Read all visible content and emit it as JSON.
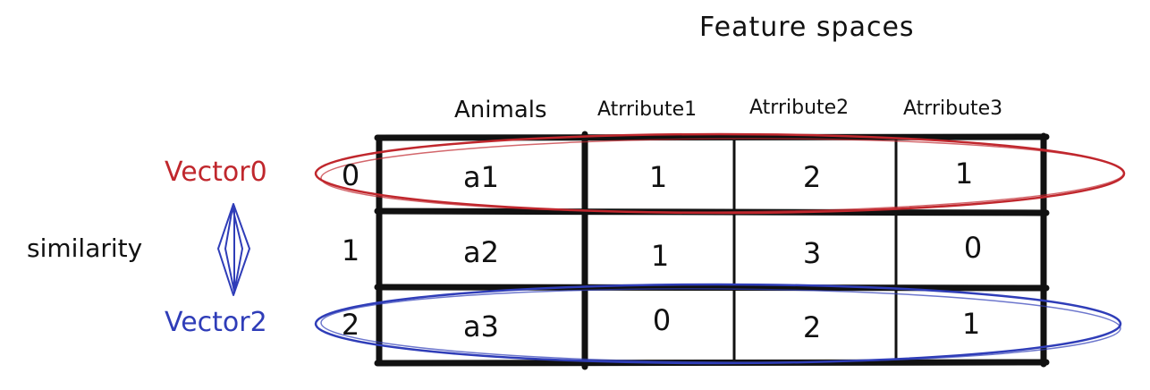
{
  "title": "Feature spaces",
  "columns": [
    "Animals",
    "Atrribute1",
    "Atrribute2",
    "Atrribute3"
  ],
  "rows": [
    {
      "index": "0",
      "cells": [
        "a1",
        "1",
        "2",
        "1"
      ]
    },
    {
      "index": "1",
      "cells": [
        "a2",
        "1",
        "3",
        "0"
      ]
    },
    {
      "index": "2",
      "cells": [
        "a3",
        "0",
        "2",
        "1"
      ]
    }
  ],
  "vectors": {
    "top": {
      "label": "Vector0",
      "color": "#c0272d"
    },
    "bottom": {
      "label": "Vector2",
      "color": "#2f3db8"
    }
  },
  "similarity": {
    "label": "similarity",
    "color": "#2f3db8"
  }
}
